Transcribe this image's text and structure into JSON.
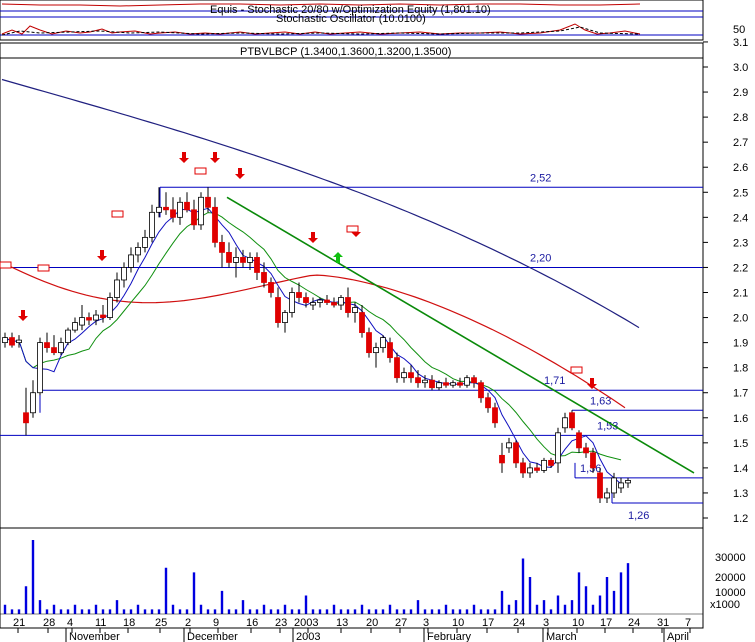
{
  "colors": {
    "background": "#ffffff",
    "axis": "#000000",
    "candle_up": "#ffffff",
    "candle_down": "#e00000",
    "price_line": "#000000",
    "level_line": "#0000c0",
    "ma_blue": "#1010c0",
    "ma_red": "#d01010",
    "ma_green": "#109010",
    "ma_navy": "#202080",
    "trendline": "#0a8a0a",
    "volume": "#0000e0",
    "signal_sell": "#e00000",
    "signal_buy": "#10c010",
    "stoch": "#c00000"
  },
  "stochastic_panel": {
    "title": "Equis - Stochastic 20/80  w/Optimization Equity (1,801.10)",
    "subtitle": "Stochastic Oscillator (10.0100)",
    "axis_label": "50"
  },
  "price_panel": {
    "title": "PTBVLBCP (1.3400,1.3600,1.3200,1.3500)"
  },
  "volume_panel": {
    "axis_labels": [
      "30000",
      "20000",
      "10000"
    ],
    "multiplier": "x1000"
  },
  "chart_data": {
    "type": "candlestick",
    "title": "PTBVLBCP (1.3400,1.3600,1.3200,1.3500)",
    "y_ticks": [
      "3.1",
      "3.0",
      "2.9",
      "2.8",
      "2.7",
      "2.6",
      "2.5",
      "2.4",
      "2.3",
      "2.2",
      "2.1",
      "2.0",
      "1.9",
      "1.8",
      "1.7",
      "1.6",
      "1.5",
      "1.4",
      "1.3",
      "1.2"
    ],
    "ylim": [
      1.15,
      3.15
    ],
    "x_tick_labels": [
      "21",
      "28",
      "4",
      "11",
      "18",
      "25",
      "2",
      "9",
      "16",
      "23",
      "2003",
      "13",
      "20",
      "27",
      "3",
      "10",
      "17",
      "24",
      "3",
      "10",
      "17",
      "24",
      "31",
      "7"
    ],
    "month_labels": [
      "November",
      "December",
      "2003",
      "February",
      "March",
      "April"
    ],
    "candles": [
      {
        "o": 1.9,
        "h": 1.94,
        "l": 1.88,
        "c": 1.92
      },
      {
        "o": 1.92,
        "h": 1.94,
        "l": 1.88,
        "c": 1.89
      },
      {
        "o": 1.9,
        "h": 1.93,
        "l": 1.88,
        "c": 1.91
      },
      {
        "o": 1.62,
        "h": 1.72,
        "l": 1.53,
        "c": 1.58
      },
      {
        "o": 1.62,
        "h": 1.75,
        "l": 1.6,
        "c": 1.7
      },
      {
        "o": 1.7,
        "h": 1.92,
        "l": 1.69,
        "c": 1.9
      },
      {
        "o": 1.9,
        "h": 1.94,
        "l": 1.86,
        "c": 1.88
      },
      {
        "o": 1.88,
        "h": 1.93,
        "l": 1.85,
        "c": 1.86
      },
      {
        "o": 1.86,
        "h": 1.92,
        "l": 1.85,
        "c": 1.9
      },
      {
        "o": 1.9,
        "h": 1.96,
        "l": 1.89,
        "c": 1.95
      },
      {
        "o": 1.95,
        "h": 2.0,
        "l": 1.94,
        "c": 1.98
      },
      {
        "o": 1.97,
        "h": 2.05,
        "l": 1.95,
        "c": 2.0
      },
      {
        "o": 2.0,
        "h": 2.02,
        "l": 1.97,
        "c": 1.99
      },
      {
        "o": 1.99,
        "h": 2.03,
        "l": 1.97,
        "c": 2.01
      },
      {
        "o": 2.01,
        "h": 2.05,
        "l": 1.98,
        "c": 2.0
      },
      {
        "o": 2.0,
        "h": 2.1,
        "l": 1.99,
        "c": 2.08
      },
      {
        "o": 2.08,
        "h": 2.18,
        "l": 2.06,
        "c": 2.15
      },
      {
        "o": 2.15,
        "h": 2.22,
        "l": 2.12,
        "c": 2.2
      },
      {
        "o": 2.2,
        "h": 2.28,
        "l": 2.18,
        "c": 2.25
      },
      {
        "o": 2.25,
        "h": 2.3,
        "l": 2.22,
        "c": 2.28
      },
      {
        "o": 2.28,
        "h": 2.35,
        "l": 2.26,
        "c": 2.32
      },
      {
        "o": 2.32,
        "h": 2.45,
        "l": 2.3,
        "c": 2.42
      },
      {
        "o": 2.42,
        "h": 2.52,
        "l": 2.4,
        "c": 2.44
      },
      {
        "o": 2.44,
        "h": 2.5,
        "l": 2.41,
        "c": 2.43
      },
      {
        "o": 2.43,
        "h": 2.48,
        "l": 2.38,
        "c": 2.4
      },
      {
        "o": 2.4,
        "h": 2.48,
        "l": 2.37,
        "c": 2.46
      },
      {
        "o": 2.46,
        "h": 2.5,
        "l": 2.42,
        "c": 2.43
      },
      {
        "o": 2.43,
        "h": 2.47,
        "l": 2.35,
        "c": 2.37
      },
      {
        "o": 2.37,
        "h": 2.5,
        "l": 2.35,
        "c": 2.48
      },
      {
        "o": 2.48,
        "h": 2.52,
        "l": 2.42,
        "c": 2.44
      },
      {
        "o": 2.44,
        "h": 2.48,
        "l": 2.28,
        "c": 2.3
      },
      {
        "o": 2.3,
        "h": 2.33,
        "l": 2.2,
        "c": 2.26
      },
      {
        "o": 2.26,
        "h": 2.3,
        "l": 2.2,
        "c": 2.22
      },
      {
        "o": 2.22,
        "h": 2.28,
        "l": 2.16,
        "c": 2.24
      },
      {
        "o": 2.24,
        "h": 2.27,
        "l": 2.2,
        "c": 2.22
      },
      {
        "o": 2.22,
        "h": 2.26,
        "l": 2.19,
        "c": 2.24
      },
      {
        "o": 2.24,
        "h": 2.26,
        "l": 2.15,
        "c": 2.18
      },
      {
        "o": 2.18,
        "h": 2.22,
        "l": 2.12,
        "c": 2.14
      },
      {
        "o": 2.14,
        "h": 2.16,
        "l": 2.08,
        "c": 2.1
      },
      {
        "o": 2.08,
        "h": 2.12,
        "l": 1.96,
        "c": 1.98
      },
      {
        "o": 1.98,
        "h": 2.03,
        "l": 1.94,
        "c": 2.02
      },
      {
        "o": 2.02,
        "h": 2.12,
        "l": 2.0,
        "c": 2.1
      },
      {
        "o": 2.1,
        "h": 2.14,
        "l": 2.06,
        "c": 2.08
      },
      {
        "o": 2.08,
        "h": 2.1,
        "l": 2.04,
        "c": 2.06
      },
      {
        "o": 2.05,
        "h": 2.08,
        "l": 2.03,
        "c": 2.06
      },
      {
        "o": 2.06,
        "h": 2.08,
        "l": 2.04,
        "c": 2.07
      },
      {
        "o": 2.07,
        "h": 2.09,
        "l": 2.05,
        "c": 2.06
      },
      {
        "o": 2.06,
        "h": 2.08,
        "l": 2.04,
        "c": 2.05
      },
      {
        "o": 2.05,
        "h": 2.09,
        "l": 2.03,
        "c": 2.08
      },
      {
        "o": 2.08,
        "h": 2.12,
        "l": 2.0,
        "c": 2.02
      },
      {
        "o": 2.02,
        "h": 2.06,
        "l": 1.98,
        "c": 2.04
      },
      {
        "o": 2.02,
        "h": 2.05,
        "l": 1.92,
        "c": 1.94
      },
      {
        "o": 1.94,
        "h": 1.96,
        "l": 1.84,
        "c": 1.86
      },
      {
        "o": 1.86,
        "h": 1.9,
        "l": 1.8,
        "c": 1.88
      },
      {
        "o": 1.88,
        "h": 1.93,
        "l": 1.86,
        "c": 1.92
      },
      {
        "o": 1.9,
        "h": 1.92,
        "l": 1.82,
        "c": 1.84
      },
      {
        "o": 1.84,
        "h": 1.86,
        "l": 1.74,
        "c": 1.76
      },
      {
        "o": 1.76,
        "h": 1.8,
        "l": 1.74,
        "c": 1.78
      },
      {
        "o": 1.78,
        "h": 1.81,
        "l": 1.74,
        "c": 1.76
      },
      {
        "o": 1.76,
        "h": 1.79,
        "l": 1.72,
        "c": 1.74
      },
      {
        "o": 1.74,
        "h": 1.77,
        "l": 1.72,
        "c": 1.75
      },
      {
        "o": 1.75,
        "h": 1.77,
        "l": 1.71,
        "c": 1.72
      },
      {
        "o": 1.72,
        "h": 1.75,
        "l": 1.71,
        "c": 1.74
      },
      {
        "o": 1.74,
        "h": 1.76,
        "l": 1.72,
        "c": 1.73
      },
      {
        "o": 1.73,
        "h": 1.75,
        "l": 1.72,
        "c": 1.74
      },
      {
        "o": 1.74,
        "h": 1.76,
        "l": 1.72,
        "c": 1.73
      },
      {
        "o": 1.73,
        "h": 1.77,
        "l": 1.72,
        "c": 1.76
      },
      {
        "o": 1.76,
        "h": 1.77,
        "l": 1.72,
        "c": 1.74
      },
      {
        "o": 1.74,
        "h": 1.75,
        "l": 1.66,
        "c": 1.68
      },
      {
        "o": 1.68,
        "h": 1.7,
        "l": 1.62,
        "c": 1.64
      },
      {
        "o": 1.64,
        "h": 1.66,
        "l": 1.56,
        "c": 1.58
      },
      {
        "o": 1.45,
        "h": 1.5,
        "l": 1.38,
        "c": 1.42
      },
      {
        "o": 1.48,
        "h": 1.52,
        "l": 1.46,
        "c": 1.5
      },
      {
        "o": 1.5,
        "h": 1.51,
        "l": 1.4,
        "c": 1.42
      },
      {
        "o": 1.42,
        "h": 1.44,
        "l": 1.36,
        "c": 1.38
      },
      {
        "o": 1.38,
        "h": 1.42,
        "l": 1.36,
        "c": 1.4
      },
      {
        "o": 1.4,
        "h": 1.42,
        "l": 1.38,
        "c": 1.39
      },
      {
        "o": 1.39,
        "h": 1.44,
        "l": 1.38,
        "c": 1.43
      },
      {
        "o": 1.43,
        "h": 1.44,
        "l": 1.4,
        "c": 1.41
      },
      {
        "o": 1.42,
        "h": 1.56,
        "l": 1.38,
        "c": 1.54
      },
      {
        "o": 1.56,
        "h": 1.62,
        "l": 1.54,
        "c": 1.6
      },
      {
        "o": 1.62,
        "h": 1.63,
        "l": 1.55,
        "c": 1.56
      },
      {
        "o": 1.54,
        "h": 1.55,
        "l": 1.46,
        "c": 1.48
      },
      {
        "o": 1.48,
        "h": 1.5,
        "l": 1.44,
        "c": 1.46
      },
      {
        "o": 1.46,
        "h": 1.48,
        "l": 1.38,
        "c": 1.4
      },
      {
        "o": 1.38,
        "h": 1.4,
        "l": 1.26,
        "c": 1.28
      },
      {
        "o": 1.28,
        "h": 1.32,
        "l": 1.26,
        "c": 1.3
      },
      {
        "o": 1.3,
        "h": 1.38,
        "l": 1.28,
        "c": 1.36
      },
      {
        "o": 1.32,
        "h": 1.36,
        "l": 1.3,
        "c": 1.34
      },
      {
        "o": 1.34,
        "h": 1.36,
        "l": 1.32,
        "c": 1.35
      }
    ],
    "volume": [
      2,
      1,
      1,
      6,
      16,
      3,
      1,
      2,
      1,
      1,
      2,
      1,
      1,
      2,
      1,
      1,
      3,
      1,
      1,
      2,
      1,
      1,
      1,
      10,
      2,
      1,
      1,
      9,
      2,
      1,
      1,
      5,
      1,
      1,
      3,
      1,
      1,
      2,
      1,
      1,
      2,
      1,
      1,
      4,
      1,
      1,
      1,
      2,
      1,
      1,
      1,
      2,
      1,
      1,
      1,
      2,
      1,
      1,
      1,
      3,
      1,
      1,
      1,
      2,
      1,
      1,
      1,
      2,
      1,
      1,
      1,
      5,
      2,
      3,
      12,
      8,
      2,
      3,
      1,
      4,
      2,
      3,
      9,
      6,
      2,
      4,
      8,
      5,
      9,
      11
    ],
    "moving_averages": [
      {
        "color": "#202080",
        "start": [
          0,
          2.95
        ],
        "end": [
          91,
          1.96
        ]
      },
      {
        "color": "#d01010",
        "start": [
          0,
          2.22
        ],
        "end": [
          89,
          1.64
        ]
      },
      {
        "color": "#109010",
        "start": [
          0,
          1.88
        ],
        "end": [
          88,
          1.39
        ]
      },
      {
        "color": "#1010c0",
        "start": [
          0,
          1.88
        ],
        "end": [
          88,
          1.38
        ]
      }
    ],
    "levels": [
      {
        "label": "2,52",
        "value": 2.52
      },
      {
        "label": "2,20",
        "value": 2.2
      },
      {
        "label": "1,71",
        "value": 1.71
      },
      {
        "label": "1,63",
        "value": 1.63
      },
      {
        "label": "1,53",
        "value": 1.53
      },
      {
        "label": "1,36",
        "value": 1.36
      },
      {
        "label": "1,26",
        "value": 1.26
      }
    ],
    "trendline": {
      "start": [
        26,
        2.48
      ],
      "end": [
        95,
        1.38
      ]
    }
  }
}
